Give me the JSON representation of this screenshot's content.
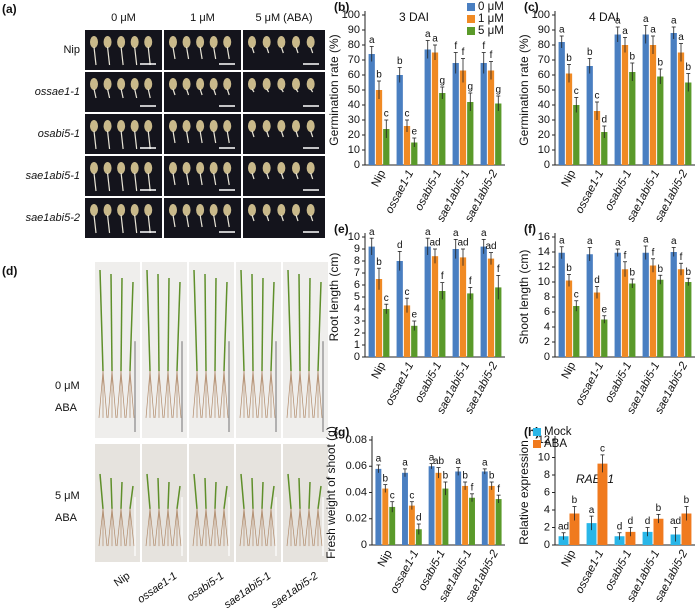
{
  "photo_a": {
    "panel_label": "(a)",
    "columns": [
      "0 μM",
      "1 μM",
      "5 μM  (ABA)"
    ],
    "rows": [
      "Nip",
      "ossae1-1",
      "osabi5-1",
      "sae1abi5-1",
      "sae1abi5-2"
    ]
  },
  "photo_d": {
    "panel_label": "(d)",
    "row_labels": [
      [
        "0 μM",
        "ABA"
      ],
      [
        "5 μM",
        "ABA"
      ]
    ],
    "columns": [
      "Nip",
      "ossae1-1",
      "osabi5-1",
      "sae1abi5-1",
      "sae1abi5-2"
    ]
  },
  "chart_data": [
    {
      "type": "bar",
      "panel_label": "(b)",
      "title": "3 DAI",
      "ylabel": "Germination rate (%)",
      "legend": "upper right",
      "categories": [
        "Nip",
        "ossae1-1",
        "osabi5-1",
        "sae1abi5-1",
        "sae1abi5-2"
      ],
      "series": [
        {
          "name": "0 μM",
          "color": "#4a7fc1",
          "values": [
            74,
            60,
            77,
            68,
            68
          ],
          "errors": [
            5,
            5,
            6,
            7,
            7
          ],
          "letters": [
            "a",
            "b",
            "a",
            "f",
            "f"
          ]
        },
        {
          "name": "1 μM",
          "color": "#f08a24",
          "values": [
            50,
            26,
            75,
            63,
            63
          ],
          "errors": [
            6,
            4,
            5,
            8,
            6
          ],
          "letters": [
            "b",
            "c",
            "a",
            "f",
            "f"
          ]
        },
        {
          "name": "5 μM",
          "color": "#5a9a2a",
          "values": [
            24,
            15,
            48,
            42,
            41
          ],
          "errors": [
            6,
            3,
            4,
            6,
            5
          ],
          "letters": [
            "c",
            "e",
            "g",
            "g",
            "g"
          ]
        }
      ],
      "ylim": [
        0,
        100
      ],
      "yticks": [
        0,
        10,
        20,
        30,
        40,
        50,
        60,
        70,
        80,
        90,
        100
      ]
    },
    {
      "type": "bar",
      "panel_label": "(c)",
      "title": "4 DAI",
      "ylabel": "Germination rate (%)",
      "categories": [
        "Nip",
        "ossae1-1",
        "osabi5-1",
        "sae1abi5-1",
        "sae1abi5-2"
      ],
      "series": [
        {
          "color": "#4a7fc1",
          "values": [
            82,
            66,
            87,
            87,
            88
          ],
          "errors": [
            4,
            5,
            5,
            6,
            4
          ],
          "letters": [
            "a",
            "b",
            "a",
            "a",
            "a"
          ]
        },
        {
          "color": "#f08a24",
          "values": [
            61,
            36,
            80,
            80,
            75
          ],
          "errors": [
            6,
            6,
            5,
            6,
            6
          ],
          "letters": [
            "b",
            "c",
            "a",
            "a",
            "a"
          ]
        },
        {
          "color": "#5a9a2a",
          "values": [
            40,
            22,
            62,
            59,
            55
          ],
          "errors": [
            5,
            4,
            6,
            5,
            6
          ],
          "letters": [
            "c",
            "d",
            "b",
            "b",
            "b"
          ]
        }
      ],
      "ylim": [
        0,
        100
      ],
      "yticks": [
        0,
        10,
        20,
        30,
        40,
        50,
        60,
        70,
        80,
        90,
        100
      ]
    },
    {
      "type": "bar",
      "panel_label": "(e)",
      "ylabel": "Root length (cm)",
      "categories": [
        "Nip",
        "ossae1-1",
        "osabi5-1",
        "sae1abi5-1",
        "sae1abi5-2"
      ],
      "series": [
        {
          "color": "#4a7fc1",
          "values": [
            9.2,
            8.0,
            9.2,
            9.0,
            9.2
          ],
          "errors": [
            0.7,
            0.8,
            0.7,
            0.8,
            0.6
          ],
          "letters": [
            "a",
            "d",
            "a",
            "a",
            "a"
          ]
        },
        {
          "color": "#f08a24",
          "values": [
            6.5,
            4.3,
            8.4,
            8.3,
            8.2
          ],
          "errors": [
            0.9,
            0.6,
            0.6,
            0.7,
            0.5
          ],
          "letters": [
            "b",
            "c",
            "ad",
            "ad",
            "ad"
          ]
        },
        {
          "color": "#5a9a2a",
          "values": [
            4.0,
            2.6,
            5.5,
            5.3,
            5.8
          ],
          "errors": [
            0.4,
            0.4,
            0.7,
            0.5,
            1.0
          ],
          "letters": [
            "c",
            "e",
            "f",
            "f",
            "f"
          ]
        }
      ],
      "ylim": [
        0,
        10
      ],
      "yticks": [
        0,
        1,
        2,
        3,
        4,
        5,
        6,
        7,
        8,
        9,
        10
      ]
    },
    {
      "type": "bar",
      "panel_label": "(f)",
      "ylabel": "Shoot length (cm)",
      "categories": [
        "Nip",
        "ossae1-1",
        "osabi5-1",
        "sae1abi5-1",
        "sae1abi5-2"
      ],
      "series": [
        {
          "color": "#4a7fc1",
          "values": [
            13.9,
            13.7,
            13.9,
            13.9,
            14.0
          ],
          "errors": [
            0.8,
            0.9,
            0.5,
            0.9,
            0.6
          ],
          "letters": [
            "a",
            "a",
            "a",
            "a",
            "a"
          ]
        },
        {
          "color": "#f08a24",
          "values": [
            10.2,
            8.6,
            11.7,
            12.2,
            11.7
          ],
          "errors": [
            0.8,
            0.8,
            1.0,
            0.9,
            0.8
          ],
          "letters": [
            "b",
            "d",
            "f",
            "f",
            "f"
          ]
        },
        {
          "color": "#5a9a2a",
          "values": [
            6.8,
            5.0,
            9.8,
            10.3,
            10.0
          ],
          "errors": [
            0.7,
            0.5,
            0.6,
            0.6,
            0.5
          ],
          "letters": [
            "c",
            "e",
            "b",
            "b",
            "b"
          ]
        }
      ],
      "ylim": [
        0,
        16
      ],
      "yticks": [
        0,
        2,
        4,
        6,
        8,
        10,
        12,
        14,
        16
      ]
    },
    {
      "type": "bar",
      "panel_label": "(g)",
      "ylabel": "Fresh weight of shoot (g)",
      "categories": [
        "Nip",
        "ossae1-1",
        "osabi5-1",
        "sae1abi5-1",
        "sae1abi5-2"
      ],
      "series": [
        {
          "color": "#4a7fc1",
          "values": [
            0.058,
            0.055,
            0.06,
            0.056,
            0.056
          ],
          "errors": [
            0.003,
            0.003,
            0.002,
            0.003,
            0.002
          ],
          "letters": [
            "a",
            "a",
            "a",
            "a",
            "a"
          ]
        },
        {
          "color": "#f08a24",
          "values": [
            0.043,
            0.03,
            0.055,
            0.045,
            0.045
          ],
          "errors": [
            0.003,
            0.003,
            0.004,
            0.003,
            0.003
          ],
          "letters": [
            "b",
            "c",
            "ab",
            "b",
            "b"
          ]
        },
        {
          "color": "#5a9a2a",
          "values": [
            0.029,
            0.012,
            0.043,
            0.036,
            0.035
          ],
          "errors": [
            0.004,
            0.004,
            0.005,
            0.003,
            0.003
          ],
          "letters": [
            "c",
            "d",
            "b",
            "f",
            "f"
          ]
        }
      ],
      "ylim": [
        0,
        0.08
      ],
      "yticks": [
        0,
        0.02,
        0.04,
        0.06,
        0.08
      ]
    },
    {
      "type": "bar",
      "panel_label": "(h)",
      "ylabel": "Relative expression",
      "annotation": "RAB21",
      "legend": "upper left",
      "categories": [
        "Nip",
        "ossae1-1",
        "osabi5-1",
        "sae1abi5-1",
        "sae1abi5-2"
      ],
      "series": [
        {
          "name": "Mock",
          "color": "#29b6e8",
          "values": [
            1.0,
            2.5,
            1.0,
            1.5,
            1.2
          ],
          "errors": [
            0.4,
            0.8,
            0.4,
            0.5,
            0.8
          ],
          "letters": [
            "ad",
            "a",
            "d",
            "d",
            "ad"
          ]
        },
        {
          "name": "ABA",
          "color": "#f07a1e",
          "values": [
            3.6,
            9.3,
            1.5,
            3.0,
            3.6
          ],
          "errors": [
            0.8,
            1.0,
            0.5,
            0.5,
            0.8
          ],
          "letters": [
            "b",
            "c",
            "d",
            "b",
            "b"
          ]
        }
      ],
      "ylim": [
        0,
        12
      ],
      "yticks": [
        0,
        2,
        4,
        6,
        8,
        10,
        12
      ]
    }
  ]
}
